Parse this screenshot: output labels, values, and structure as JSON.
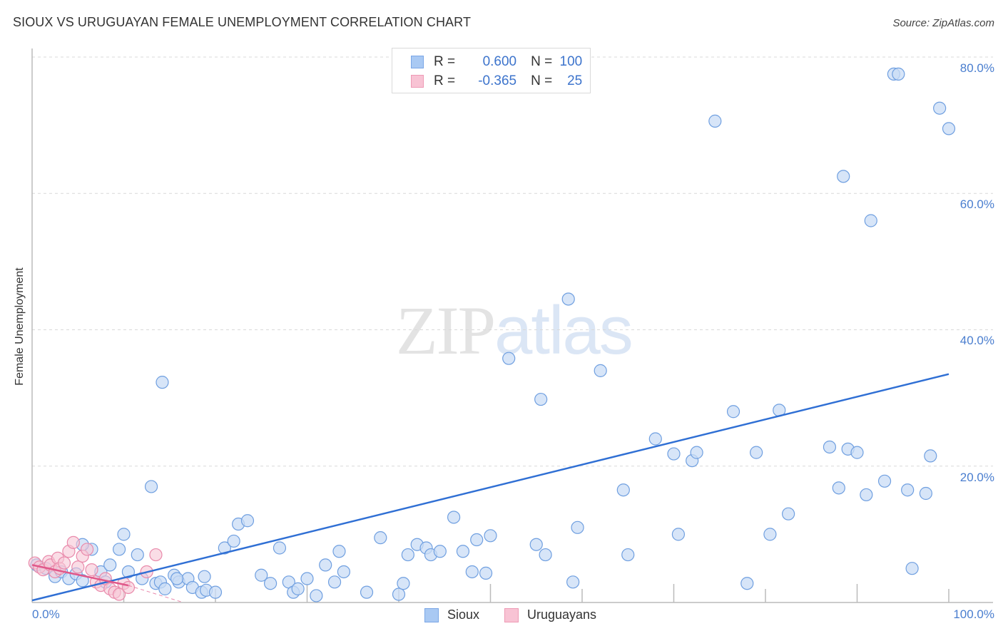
{
  "header": {
    "title": "SIOUX VS URUGUAYAN FEMALE UNEMPLOYMENT CORRELATION CHART",
    "source": "Source: ZipAtlas.com"
  },
  "watermark": {
    "zip": "ZIP",
    "atlas": "atlas"
  },
  "legend": {
    "rows": [
      {
        "r_label": "R =",
        "r_value": "0.600",
        "n_label": "N =",
        "n_value": "100",
        "color": "#a9c9f3",
        "border": "#7aa6e6"
      },
      {
        "r_label": "R =",
        "r_value": "-0.365",
        "n_label": "N =",
        "n_value": "25",
        "color": "#f8c3d4",
        "border": "#ee9ab5"
      }
    ]
  },
  "bottom_legend": [
    {
      "label": "Sioux",
      "color": "#a9c9f3",
      "border": "#7aa6e6"
    },
    {
      "label": "Uruguayans",
      "color": "#f8c3d4",
      "border": "#ee9ab5"
    }
  ],
  "axes": {
    "ylabel": "Female Unemployment",
    "yticks": [
      "80.0%",
      "60.0%",
      "40.0%",
      "20.0%"
    ],
    "xticks": [
      "0.0%",
      "100.0%"
    ]
  },
  "colors": {
    "sioux_fill": "#c9dcf6",
    "sioux_stroke": "#6f9fe0",
    "sioux_line": "#2f6fd4",
    "uru_fill": "#f7c6d6",
    "uru_stroke": "#e98aab",
    "uru_line": "#e0588a"
  },
  "chart_data": {
    "type": "scatter",
    "title": "SIOUX VS URUGUAYAN FEMALE UNEMPLOYMENT CORRELATION CHART",
    "xlabel": "",
    "ylabel": "Female Unemployment",
    "xlim": [
      0,
      100
    ],
    "ylim": [
      0,
      80
    ],
    "x_tick_labels": [
      "0.0%",
      "100.0%"
    ],
    "y_tick_labels": [
      "20.0%",
      "40.0%",
      "60.0%",
      "80.0%"
    ],
    "grid": "horizontal dashed at 20/40/60/80",
    "legend_position": "top-center (stats) and bottom-center (series)",
    "series": [
      {
        "name": "Sioux",
        "r": 0.6,
        "n": 100,
        "trend": {
          "x": [
            0,
            100
          ],
          "y": [
            0.3,
            33.5
          ]
        },
        "points": [
          [
            0.5,
            5.5
          ],
          [
            1.5,
            5.0
          ],
          [
            2.5,
            3.8
          ],
          [
            3.2,
            4.5
          ],
          [
            4.0,
            3.5
          ],
          [
            4.8,
            4.2
          ],
          [
            5.5,
            3.2
          ],
          [
            6.5,
            7.8
          ],
          [
            5.5,
            8.5
          ],
          [
            7.5,
            4.5
          ],
          [
            8.0,
            3.0
          ],
          [
            8.5,
            5.5
          ],
          [
            9.5,
            7.8
          ],
          [
            10.0,
            10.0
          ],
          [
            10.5,
            4.5
          ],
          [
            11.5,
            7.0
          ],
          [
            12.0,
            3.5
          ],
          [
            13.5,
            2.8
          ],
          [
            13.0,
            17.0
          ],
          [
            14.0,
            3.0
          ],
          [
            14.5,
            2.0
          ],
          [
            15.5,
            4.0
          ],
          [
            16.0,
            3.0
          ],
          [
            17.0,
            3.5
          ],
          [
            17.5,
            2.2
          ],
          [
            18.5,
            1.5
          ],
          [
            19.0,
            1.8
          ],
          [
            18.8,
            3.8
          ],
          [
            14.2,
            32.3
          ],
          [
            15.8,
            3.5
          ],
          [
            20.0,
            1.5
          ],
          [
            21.0,
            8.0
          ],
          [
            22.0,
            9.0
          ],
          [
            22.5,
            11.5
          ],
          [
            23.5,
            12.0
          ],
          [
            25.0,
            4.0
          ],
          [
            26.0,
            2.8
          ],
          [
            27.0,
            8.0
          ],
          [
            28.0,
            3.0
          ],
          [
            28.5,
            1.5
          ],
          [
            29.0,
            2.0
          ],
          [
            30.0,
            3.5
          ],
          [
            31.0,
            1.0
          ],
          [
            32.0,
            5.5
          ],
          [
            33.0,
            3.0
          ],
          [
            33.5,
            7.5
          ],
          [
            34.0,
            4.5
          ],
          [
            36.5,
            1.5
          ],
          [
            38.0,
            9.5
          ],
          [
            40.0,
            1.2
          ],
          [
            40.5,
            2.8
          ],
          [
            41.0,
            7.0
          ],
          [
            42.0,
            8.5
          ],
          [
            43.0,
            8.0
          ],
          [
            43.5,
            7.0
          ],
          [
            44.5,
            7.5
          ],
          [
            46.0,
            12.5
          ],
          [
            47.0,
            7.5
          ],
          [
            48.0,
            4.5
          ],
          [
            48.5,
            9.2
          ],
          [
            49.5,
            4.3
          ],
          [
            50.0,
            9.8
          ],
          [
            52.0,
            35.8
          ],
          [
            55.0,
            8.5
          ],
          [
            55.5,
            29.8
          ],
          [
            56.0,
            7.0
          ],
          [
            58.5,
            44.5
          ],
          [
            59.0,
            3.0
          ],
          [
            59.5,
            11.0
          ],
          [
            62.0,
            34.0
          ],
          [
            64.5,
            16.5
          ],
          [
            65.0,
            7.0
          ],
          [
            68.0,
            24.0
          ],
          [
            70.0,
            21.8
          ],
          [
            70.5,
            10.0
          ],
          [
            72.0,
            20.8
          ],
          [
            72.5,
            22.0
          ],
          [
            74.5,
            70.6
          ],
          [
            76.5,
            28.0
          ],
          [
            78.0,
            2.8
          ],
          [
            79.0,
            22.0
          ],
          [
            80.5,
            10.0
          ],
          [
            81.5,
            28.2
          ],
          [
            82.5,
            13.0
          ],
          [
            87.0,
            22.8
          ],
          [
            88.0,
            16.8
          ],
          [
            88.5,
            62.5
          ],
          [
            89.0,
            22.5
          ],
          [
            90.0,
            22.0
          ],
          [
            91.0,
            15.8
          ],
          [
            91.5,
            56.0
          ],
          [
            93.0,
            17.8
          ],
          [
            94.0,
            77.5
          ],
          [
            94.5,
            77.5
          ],
          [
            95.5,
            16.5
          ],
          [
            96.0,
            5.0
          ],
          [
            97.5,
            16.0
          ],
          [
            98.0,
            21.5
          ],
          [
            99.0,
            72.5
          ],
          [
            100.0,
            69.5
          ]
        ]
      },
      {
        "name": "Uruguayans",
        "r": -0.365,
        "n": 25,
        "trend": {
          "x": [
            0,
            10.5
          ],
          "y": [
            5.5,
            2.5
          ]
        },
        "trend_extension": {
          "x": [
            10.5,
            16.5
          ],
          "y": [
            2.5,
            0.0
          ],
          "style": "dashed"
        },
        "points": [
          [
            0.3,
            5.8
          ],
          [
            0.8,
            5.2
          ],
          [
            1.2,
            4.8
          ],
          [
            1.8,
            6.0
          ],
          [
            2.0,
            5.5
          ],
          [
            2.5,
            4.5
          ],
          [
            2.8,
            6.5
          ],
          [
            3.0,
            5.0
          ],
          [
            3.5,
            5.8
          ],
          [
            4.0,
            7.5
          ],
          [
            4.5,
            8.8
          ],
          [
            5.0,
            5.2
          ],
          [
            5.5,
            6.8
          ],
          [
            6.5,
            4.8
          ],
          [
            7.0,
            3.0
          ],
          [
            7.5,
            2.5
          ],
          [
            8.0,
            3.5
          ],
          [
            8.5,
            2.0
          ],
          [
            9.0,
            1.5
          ],
          [
            9.5,
            1.2
          ],
          [
            10.0,
            2.8
          ],
          [
            10.5,
            2.2
          ],
          [
            12.5,
            4.5
          ],
          [
            13.5,
            7.0
          ],
          [
            6.0,
            7.8
          ]
        ]
      }
    ]
  }
}
